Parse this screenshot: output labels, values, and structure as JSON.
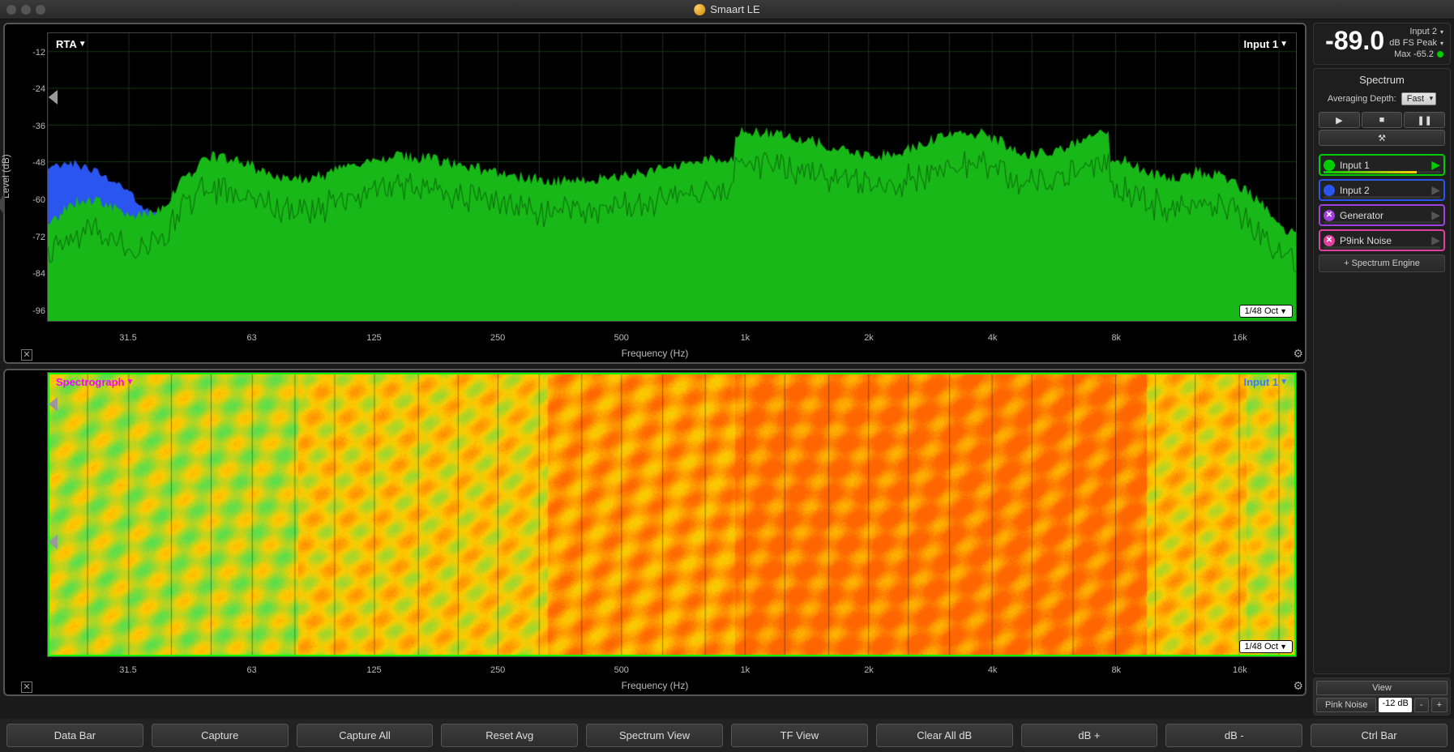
{
  "window": {
    "title": "Smaart LE"
  },
  "meter": {
    "level": "-89.0",
    "input_sel": "Input 2",
    "scale": "dB FS Peak",
    "max": "Max -65.2"
  },
  "sidebar": {
    "title": "Spectrum",
    "avg_label": "Averaging Depth:",
    "avg_value": "Fast",
    "add_engine": "+ Spectrum Engine",
    "inputs": [
      {
        "label": "Input 1",
        "color": "#00cc00",
        "border": "#00cc00",
        "active": true,
        "x": false
      },
      {
        "label": "Input 2",
        "color": "#2a55ee",
        "border": "#2a55ee",
        "active": false,
        "x": false
      },
      {
        "label": "Generator",
        "color": "#a040e0",
        "border": "#a040e0",
        "active": false,
        "x": true
      },
      {
        "label": "P9ink Noise",
        "color": "#e040a0",
        "border": "#e040a0",
        "active": false,
        "x": true
      }
    ]
  },
  "rta": {
    "name": "RTA",
    "input_label": "Input 1",
    "resolution": "1/48 Oct",
    "ylabel": "Level (dB)",
    "xlabel": "Frequency (Hz)",
    "yticks": [
      -12,
      -24,
      -36,
      -48,
      -60,
      -72,
      -84,
      -96
    ],
    "ylim": [
      -100,
      -6
    ],
    "xticks": [
      "31.5",
      "63",
      "125",
      "250",
      "500",
      "1k",
      "2k",
      "4k",
      "8k",
      "16k"
    ],
    "xlog_min": 20,
    "xlog_max": 22000,
    "series1_color": "#18b818",
    "series2_color": "#2a55ee",
    "trace_color": "#0a6a0a",
    "grid_color_h": "#123a12",
    "grid_color_v": "#2a2a2a"
  },
  "spectro": {
    "name": "Spectrograph",
    "input_label": "Input 1",
    "resolution": "1/48 Oct",
    "xlabel": "Frequency (Hz)",
    "xticks": [
      "31.5",
      "63",
      "125",
      "250",
      "500",
      "1k",
      "2k",
      "4k",
      "8k",
      "16k"
    ],
    "xlog_min": 20,
    "xlog_max": 22000,
    "colors": {
      "low": "#50e050",
      "mid": "#ffcc00",
      "high": "#ff6600"
    }
  },
  "viewbar": {
    "title": "View",
    "noise": "Pink Noise",
    "noise_val": "-12 dB"
  },
  "bottom_buttons": [
    "Data Bar",
    "Capture",
    "Capture All",
    "Reset Avg",
    "Spectrum View",
    "TF View",
    "Clear All dB",
    "dB +",
    "dB -",
    "Ctrl Bar"
  ]
}
